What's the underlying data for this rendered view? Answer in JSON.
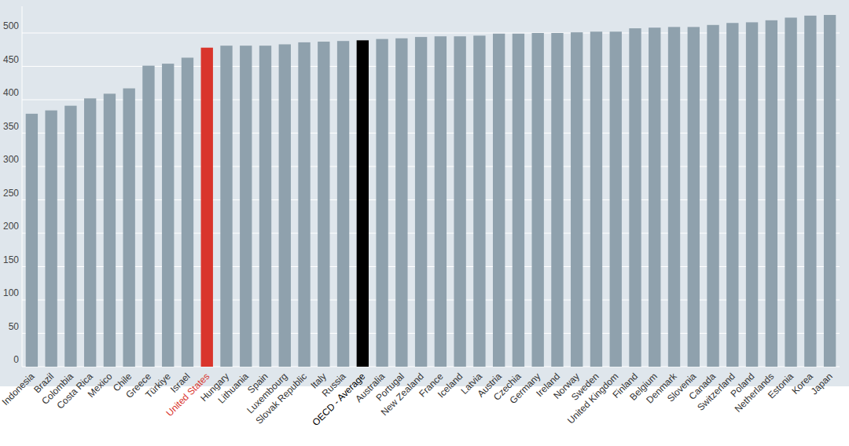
{
  "chart_data": {
    "type": "bar",
    "categories": [
      "Indonesia",
      "Brazil",
      "Colombia",
      "Costa Rica",
      "Mexico",
      "Chile",
      "Greece",
      "Türkiye",
      "Israel",
      "United States",
      "Hungary",
      "Lithuania",
      "Spain",
      "Luxembourg",
      "Slovak Republic",
      "Italy",
      "Russia",
      "OECD - Average",
      "Australia",
      "Portugal",
      "New Zealand",
      "France",
      "Iceland",
      "Latvia",
      "Austria",
      "Czechia",
      "Germany",
      "Ireland",
      "Norway",
      "Sweden",
      "United Kingdom",
      "Finland",
      "Belgium",
      "Denmark",
      "Slovenia",
      "Canada",
      "Switzerland",
      "Poland",
      "Netherlands",
      "Estonia",
      "Korea",
      "Japan"
    ],
    "values": [
      379,
      384,
      391,
      402,
      409,
      417,
      451,
      454,
      463,
      478,
      481,
      481,
      481,
      483,
      486,
      487,
      488,
      489,
      491,
      492,
      494,
      495,
      495,
      496,
      499,
      499,
      500,
      500,
      501,
      502,
      502,
      507,
      508,
      509,
      509,
      512,
      515,
      516,
      519,
      523,
      526,
      527
    ],
    "colors": [
      "#8fa1ad",
      "#8fa1ad",
      "#8fa1ad",
      "#8fa1ad",
      "#8fa1ad",
      "#8fa1ad",
      "#8fa1ad",
      "#8fa1ad",
      "#8fa1ad",
      "#d9352c",
      "#8fa1ad",
      "#8fa1ad",
      "#8fa1ad",
      "#8fa1ad",
      "#8fa1ad",
      "#8fa1ad",
      "#8fa1ad",
      "#000000",
      "#8fa1ad",
      "#8fa1ad",
      "#8fa1ad",
      "#8fa1ad",
      "#8fa1ad",
      "#8fa1ad",
      "#8fa1ad",
      "#8fa1ad",
      "#8fa1ad",
      "#8fa1ad",
      "#8fa1ad",
      "#8fa1ad",
      "#8fa1ad",
      "#8fa1ad",
      "#8fa1ad",
      "#8fa1ad",
      "#8fa1ad",
      "#8fa1ad",
      "#8fa1ad",
      "#8fa1ad",
      "#8fa1ad",
      "#8fa1ad",
      "#8fa1ad",
      "#8fa1ad"
    ],
    "ylim": [
      0,
      540
    ],
    "yticks": [
      0,
      50,
      100,
      150,
      200,
      250,
      300,
      350,
      400,
      450,
      500
    ],
    "grid": true
  }
}
